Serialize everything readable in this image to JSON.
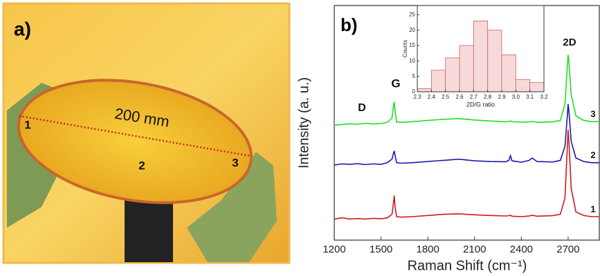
{
  "photo": {
    "panel_label": "a)",
    "length_label": "200 mm",
    "points": [
      "1",
      "2",
      "3"
    ]
  },
  "chart_data": [
    {
      "type": "line",
      "panel_label": "b)",
      "xlabel": "Raman Shift (cm⁻¹)",
      "ylabel": "Intensity (a. u.)",
      "xlim": [
        1200,
        2900
      ],
      "xticks": [
        1200,
        1500,
        1800,
        2100,
        2400,
        2700
      ],
      "ylim": [
        0,
        100
      ],
      "annotations": [
        "D",
        "G",
        "2D"
      ],
      "x": [
        1200,
        1250,
        1300,
        1350,
        1400,
        1450,
        1500,
        1540,
        1570,
        1580,
        1585,
        1590,
        1600,
        1630,
        1700,
        1800,
        1900,
        2000,
        2100,
        2200,
        2300,
        2320,
        2330,
        2340,
        2400,
        2450,
        2470,
        2500,
        2600,
        2650,
        2680,
        2695,
        2700,
        2705,
        2720,
        2750,
        2800,
        2850,
        2900
      ],
      "series": [
        {
          "name": "1",
          "color": "#cc1a1a",
          "values": [
            9,
            9.5,
            9,
            9.2,
            9,
            9.3,
            9.1,
            9.5,
            11,
            16,
            19,
            14,
            10,
            9.8,
            10,
            10.5,
            11,
            11.2,
            10.8,
            10.5,
            10.3,
            10.4,
            10.6,
            10.2,
            10,
            10.3,
            10.6,
            10.2,
            10.4,
            11,
            18,
            40,
            47,
            42,
            22,
            12,
            10.5,
            10,
            10
          ]
        },
        {
          "name": "2",
          "color": "#1a1aa8",
          "values": [
            32,
            32.5,
            32.3,
            32.6,
            32.2,
            32.5,
            32.3,
            33,
            34.5,
            37,
            38,
            36,
            33,
            32.8,
            33,
            33.5,
            34,
            34.5,
            33.8,
            33.5,
            33.4,
            34,
            36,
            33.8,
            33.2,
            34,
            35,
            33.5,
            33.3,
            34,
            40,
            53,
            58,
            55,
            42,
            35,
            33.5,
            33,
            33
          ]
        },
        {
          "name": "3",
          "color": "#22dd22",
          "values": [
            49,
            49.3,
            49.6,
            49.4,
            49.8,
            49.5,
            49.7,
            50.2,
            52,
            57,
            59,
            55,
            50.3,
            50.2,
            50.5,
            51,
            51.5,
            51.8,
            51.2,
            50.8,
            50.4,
            50.6,
            50.8,
            50.5,
            50.3,
            50.4,
            50.6,
            50.2,
            50.4,
            51,
            58,
            74,
            79,
            76,
            62,
            53,
            51,
            50.5,
            50.5
          ]
        }
      ]
    },
    {
      "type": "histogram",
      "xlabel": "2D/G ratio",
      "ylabel": "Counts",
      "color": "#f6dada",
      "edge_color": "#d06060",
      "bins": [
        2.3,
        2.4,
        2.5,
        2.6,
        2.7,
        2.8,
        2.9,
        3.0,
        3.1,
        3.2
      ],
      "values": [
        1,
        7,
        11,
        15,
        23,
        20,
        12,
        4,
        3
      ],
      "xlim": [
        2.3,
        3.2
      ],
      "xticks": [
        2.3,
        2.4,
        2.5,
        2.6,
        2.7,
        2.8,
        2.9,
        {
          "value": 3,
          "label": "3.0"
        },
        3.1,
        3.2
      ],
      "ylim": [
        0,
        28
      ],
      "yticks": [
        0,
        5,
        10,
        15,
        20,
        25
      ]
    }
  ]
}
